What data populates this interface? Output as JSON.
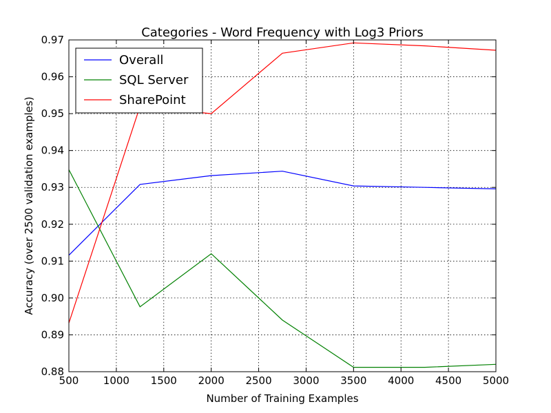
{
  "chart_data": {
    "type": "line",
    "title": "Categories - Word Frequency with Log3 Priors",
    "xlabel": "Number of Training Examples",
    "ylabel": "Accuracy (over 2500 validation examples)",
    "xlim": [
      500,
      5000
    ],
    "ylim": [
      0.88,
      0.97
    ],
    "xticks": [
      "500",
      "1000",
      "1500",
      "2000",
      "2500",
      "3000",
      "3500",
      "4000",
      "4500",
      "5000"
    ],
    "yticks": [
      "0.88",
      "0.89",
      "0.90",
      "0.91",
      "0.92",
      "0.93",
      "0.94",
      "0.95",
      "0.96",
      "0.97"
    ],
    "grid": true,
    "legend_position": "top-left",
    "x": [
      500,
      1250,
      2000,
      2750,
      3500,
      4250,
      5000
    ],
    "series": [
      {
        "name": "Overall",
        "color": "#0000ff",
        "values": [
          0.9116,
          0.9308,
          0.9332,
          0.9344,
          0.9304,
          0.93,
          0.9296
        ]
      },
      {
        "name": "SQL Server",
        "color": "#008000",
        "values": [
          0.9348,
          0.8976,
          0.912,
          0.894,
          0.8812,
          0.8812,
          0.882
        ]
      },
      {
        "name": "SharePoint",
        "color": "#ff0000",
        "values": [
          0.8932,
          0.952,
          0.95,
          0.9664,
          0.9692,
          0.9684,
          0.9672
        ]
      }
    ]
  }
}
